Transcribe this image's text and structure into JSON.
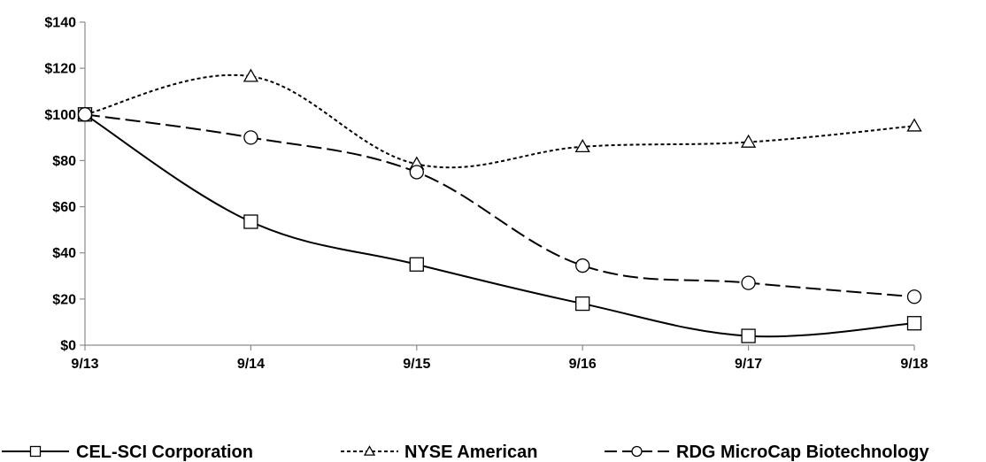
{
  "chart_data": {
    "type": "line",
    "title": "",
    "xlabel": "",
    "ylabel": "",
    "categories": [
      "9/13",
      "9/14",
      "9/15",
      "9/16",
      "9/17",
      "9/18"
    ],
    "ylim": [
      0,
      140
    ],
    "yticks": [
      0,
      20,
      40,
      60,
      80,
      100,
      120,
      140
    ],
    "ytick_labels": [
      "$0",
      "$20",
      "$40",
      "$60",
      "$80",
      "$100",
      "$120",
      "$140"
    ],
    "grid": false,
    "legend_position": "bottom",
    "series": [
      {
        "name": "CEL-SCI Corporation",
        "values": [
          100,
          53.5,
          35,
          18,
          4,
          9.5
        ],
        "marker": "square",
        "line_style": "solid",
        "color": "#000000"
      },
      {
        "name": "NYSE American",
        "values": [
          100,
          116.5,
          78.5,
          86,
          88,
          95
        ],
        "marker": "triangle",
        "line_style": "dotted",
        "color": "#000000"
      },
      {
        "name": "RDG MicroCap Biotechnology",
        "values": [
          100,
          90,
          75,
          34.5,
          27,
          21
        ],
        "marker": "circle",
        "line_style": "dashed",
        "color": "#000000"
      }
    ]
  }
}
